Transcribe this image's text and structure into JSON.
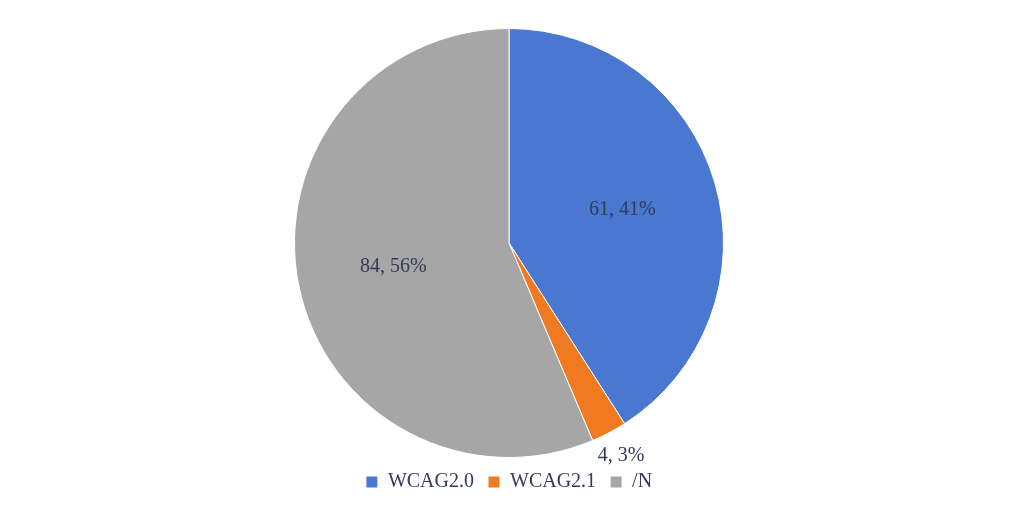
{
  "chart_data": {
    "type": "pie",
    "categories": [
      "WCAG2.0",
      "WCAG2.1",
      "/N"
    ],
    "values": [
      61,
      4,
      84
    ],
    "colors": [
      "#4a78d0",
      "#f07a22",
      "#a6a6a6"
    ],
    "value_labels": [
      "61, 41%",
      "4, 3%",
      "84, 56%"
    ],
    "legend": "bottom"
  }
}
